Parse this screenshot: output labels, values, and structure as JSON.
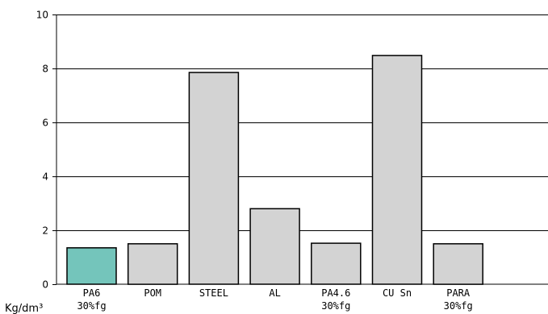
{
  "chart_data": {
    "type": "bar",
    "categories": [
      [
        "PA6",
        "30%fg"
      ],
      [
        "POM"
      ],
      [
        "STEEL"
      ],
      [
        "AL"
      ],
      [
        "PA4.6",
        "30%fg"
      ],
      [
        "CU Sn"
      ],
      [
        "PARA",
        "30%fg"
      ]
    ],
    "values": [
      1.35,
      1.5,
      7.85,
      2.8,
      1.52,
      8.48,
      1.5
    ],
    "y_unit_label": "Kg/dm³",
    "ylim": [
      0,
      10
    ],
    "yticks": [
      0,
      2,
      4,
      6,
      8,
      10
    ],
    "grid": "horizontal",
    "legend": "none",
    "bar_colors": [
      "#74c5bb",
      "#d3d3d3",
      "#d3d3d3",
      "#d3d3d3",
      "#d3d3d3",
      "#d3d3d3",
      "#d3d3d3"
    ],
    "bar_outline_color": "#000000",
    "grid_color": "#000000"
  }
}
